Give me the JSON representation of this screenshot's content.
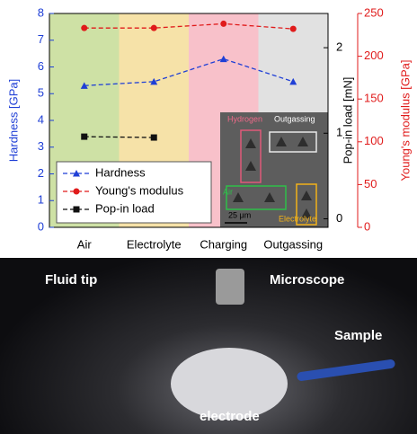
{
  "chart_data": {
    "type": "line",
    "categories": [
      "Air",
      "Electrolyte",
      "Charging",
      "Outgassing"
    ],
    "band_colors": [
      "#c6dc95",
      "#f5dd99",
      "#f7b6c1",
      "#dcdcdc"
    ],
    "ylabel": "Hardness [GPa]",
    "ylim": [
      0,
      8
    ],
    "yticks": [
      0,
      1,
      2,
      3,
      4,
      5,
      6,
      7,
      8
    ],
    "y2label": "Young's modulus [GPa]",
    "y2lim": [
      0,
      250
    ],
    "y2ticks": [
      0,
      50,
      100,
      150,
      200,
      250
    ],
    "y3label": "Pop-in load [mN]",
    "y3lim": [
      -0.1,
      2.4
    ],
    "y3ticks": [
      0,
      1,
      2
    ],
    "series": [
      {
        "name": "Hardness",
        "color": "#1f3fd6",
        "marker": "triangle",
        "values": [
          5.3,
          5.45,
          6.3,
          5.45
        ]
      },
      {
        "name": "Young's modulus",
        "color": "#e01b1b",
        "marker": "circle",
        "axis": "y2",
        "values": [
          233,
          233,
          238,
          232
        ]
      },
      {
        "name": "Pop-in load",
        "color": "#111111",
        "marker": "square",
        "axis": "y3",
        "values": [
          0.96,
          0.95,
          null,
          null
        ]
      }
    ],
    "inset_labels": [
      "Hydrogen",
      "Outgassing",
      "Air",
      "Electrolyte",
      "25 μm"
    ]
  },
  "photo": {
    "labels": [
      "Fluid tip",
      "Microscope",
      "Sample",
      "electrode"
    ]
  }
}
